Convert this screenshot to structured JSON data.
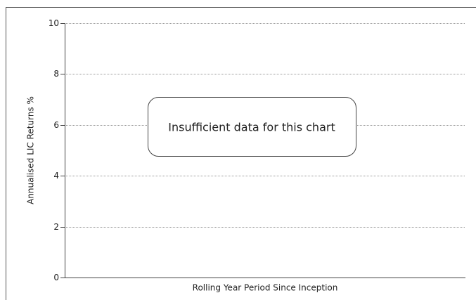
{
  "chart_data": {
    "type": "line",
    "ylabel": "Annualised LIC Returns %",
    "xlabel": "Rolling Year Period Since Inception",
    "annotation": "Insufficient data for this chart",
    "ylim": [
      0,
      10
    ],
    "yticks": [
      0,
      2,
      4,
      6,
      8,
      10
    ],
    "grid": true
  }
}
